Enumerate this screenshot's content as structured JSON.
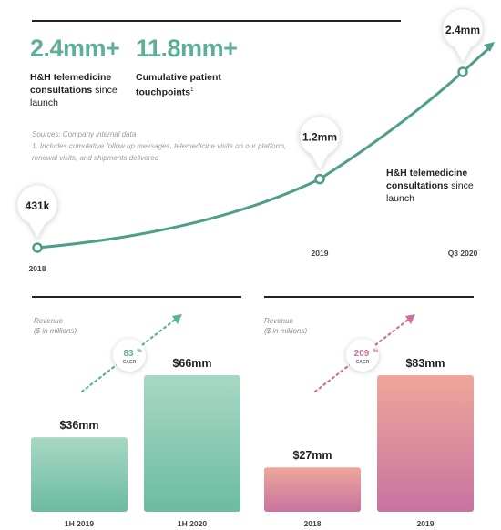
{
  "stats": [
    {
      "value": "2.4mm+",
      "caption_bold": "H&H telemedicine consultations",
      "caption_rest": " since launch"
    },
    {
      "value": "11.8mm+",
      "caption_bold": "Cumulative patient touchpoints",
      "caption_sup": "1",
      "caption_rest": ""
    }
  ],
  "sources": {
    "line1": "Sources: Company internal data",
    "line2": "1. Includes cumulative follow up messages, telemedicine visits on our platform,",
    "line3": "renewal visits, and shipments delivered"
  },
  "line_caption": {
    "bold": "H&H telemedicine consultations",
    "rest": " since launch"
  },
  "colors": {
    "teal": "#5fae98",
    "line": "#4f9e8c",
    "pink": "#c7739b",
    "rule": "#222222"
  },
  "chart_data": [
    {
      "type": "line",
      "x": [
        "2018",
        "2019",
        "Q3 2020"
      ],
      "values": [
        0.431,
        1.2,
        2.4
      ],
      "data_labels": [
        "431k",
        "1.2mm",
        "2.4mm"
      ],
      "ylabel": "",
      "title": ""
    },
    {
      "type": "bar",
      "ylabel": "Revenue ($ in millions)",
      "ylabel_line1": "Revenue",
      "ylabel_line2": "($ in millions)",
      "categories": [
        "1H 2019",
        "1H 2020"
      ],
      "values": [
        36,
        66
      ],
      "data_labels": [
        "$36mm",
        "$66mm"
      ],
      "cagr": {
        "value": "83",
        "unit": "%",
        "label": "CAGR"
      },
      "color": "#a4d4c1"
    },
    {
      "type": "bar",
      "ylabel": "Revenue ($ in millions)",
      "ylabel_line1": "Revenue",
      "ylabel_line2": "($ in millions)",
      "categories": [
        "2018",
        "2019"
      ],
      "values": [
        27,
        83
      ],
      "data_labels": [
        "$27mm",
        "$83mm"
      ],
      "cagr": {
        "value": "209",
        "unit": "%",
        "label": "CAGR"
      },
      "color": "#d98ba6"
    }
  ]
}
